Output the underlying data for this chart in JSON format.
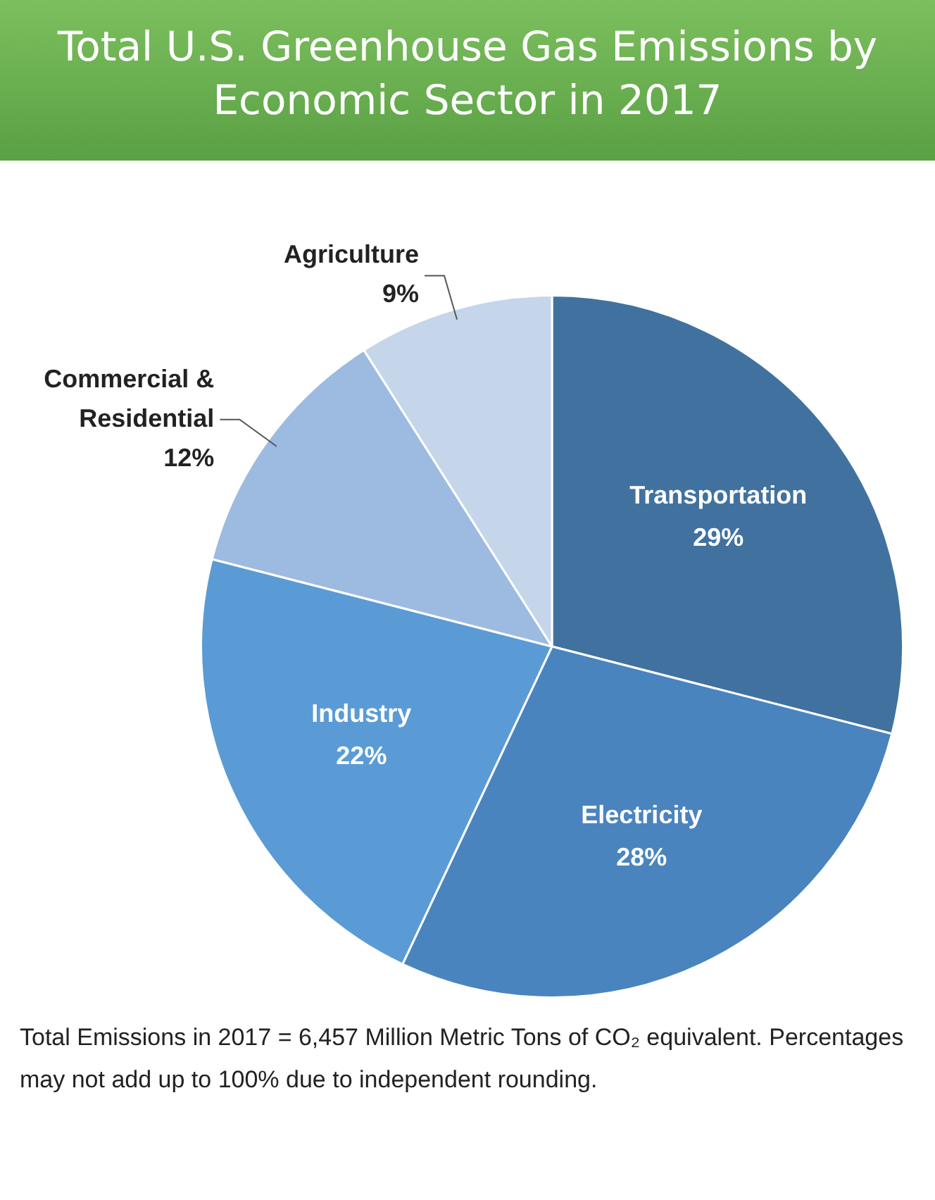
{
  "chart_data": {
    "type": "pie",
    "title": "Total U.S. Greenhouse Gas Emissions by Economic Sector in 2017",
    "categories": [
      "Transportation",
      "Electricity",
      "Industry",
      "Commercial & Residential",
      "Agriculture"
    ],
    "values": [
      29,
      28,
      22,
      12,
      9
    ],
    "value_labels": [
      "29%",
      "28%",
      "22%",
      "12%",
      "9%"
    ],
    "colors": [
      "#41729f",
      "#4a84bf",
      "#5b9bd5",
      "#9dbbe0",
      "#c5d5ea"
    ],
    "legend": false,
    "annotations": [
      "Total Emissions in 2017 = 6,457 Million Metric Tons of CO₂ equivalent. Percentages may not add up to 100% due to independent rounding."
    ]
  }
}
